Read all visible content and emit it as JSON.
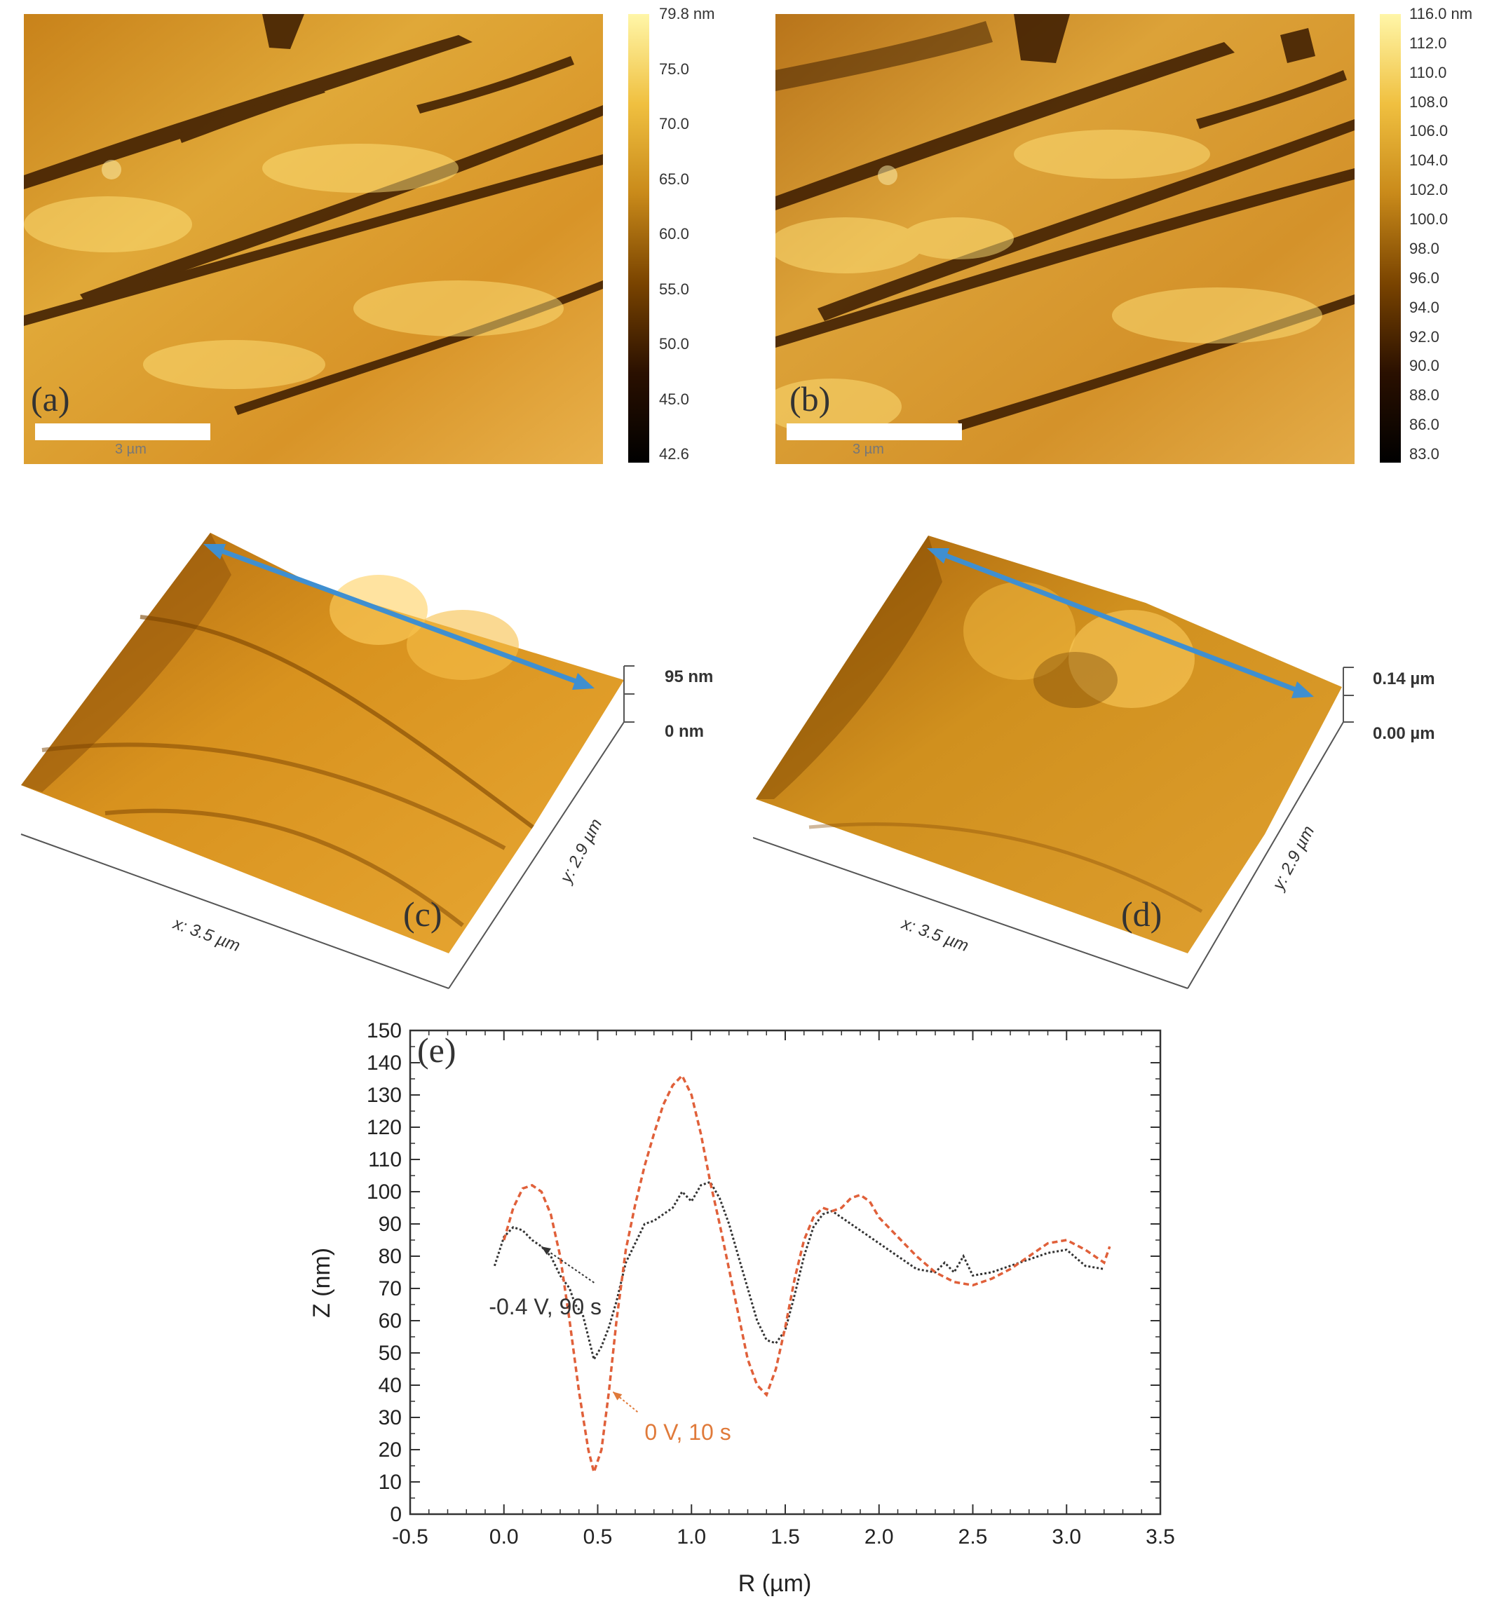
{
  "panels": {
    "a": {
      "tag": "(a)",
      "scalebar_label": "3 µm",
      "colorbar": {
        "ticks": [
          "79.8 nm",
          "75.0",
          "70.0",
          "65.0",
          "60.0",
          "55.0",
          "50.0",
          "45.0",
          "42.6"
        ],
        "min": 42.6,
        "max": 79.8
      }
    },
    "b": {
      "tag": "(b)",
      "scalebar_label": "3 µm",
      "colorbar": {
        "ticks": [
          "116.0 nm",
          "112.0",
          "110.0",
          "108.0",
          "106.0",
          "104.0",
          "102.0",
          "100.0",
          "98.0",
          "96.0",
          "94.0",
          "92.0",
          "90.0",
          "88.0",
          "86.0",
          "83.0"
        ],
        "min": 83.0,
        "max": 116.0
      }
    },
    "c": {
      "tag": "(c)",
      "z_max": "95 nm",
      "z_min": "0 nm",
      "x_axis": "x: 3.5 µm",
      "y_axis": "y: 2.9 µm"
    },
    "d": {
      "tag": "(d)",
      "z_max": "0.14 µm",
      "z_min": "0.00 µm",
      "x_axis": "x: 3.5 µm",
      "y_axis": "y: 2.9 µm"
    }
  },
  "colors": {
    "afm_dark": "#2a1400",
    "afm_mid": "#c98a1a",
    "afm_light": "#ffe27a",
    "arrow": "#3f8fd0",
    "series_black": "#333333",
    "series_orange": "#e0603a",
    "annotation_orange": "#e07a3a"
  },
  "chart_data": {
    "type": "line",
    "tag": "(e)",
    "xlabel": "R (µm)",
    "ylabel": "Z (nm)",
    "xlim": [
      -0.5,
      3.5
    ],
    "ylim": [
      0,
      150
    ],
    "xticks": [
      -0.5,
      0.0,
      0.5,
      1.0,
      1.5,
      2.0,
      2.5,
      3.0,
      3.5
    ],
    "xtick_labels": [
      "-0.5",
      "0.0",
      "0.5",
      "1.0",
      "1.5",
      "2.0",
      "2.5",
      "3.0",
      "3.5"
    ],
    "yticks": [
      0,
      10,
      20,
      30,
      40,
      50,
      60,
      70,
      80,
      90,
      100,
      110,
      120,
      130,
      140,
      150
    ],
    "ytick_labels": [
      "0",
      "10",
      "20",
      "30",
      "40",
      "50",
      "60",
      "70",
      "80",
      "90",
      "100",
      "110",
      "120",
      "130",
      "140",
      "150"
    ],
    "grid": false,
    "series": [
      {
        "name": "-0.4 V, 90 s",
        "style": "dotted",
        "x": [
          -0.05,
          0.0,
          0.05,
          0.1,
          0.15,
          0.2,
          0.25,
          0.3,
          0.35,
          0.38,
          0.42,
          0.45,
          0.48,
          0.52,
          0.56,
          0.6,
          0.65,
          0.7,
          0.75,
          0.8,
          0.85,
          0.9,
          0.95,
          1.0,
          1.05,
          1.1,
          1.15,
          1.2,
          1.25,
          1.3,
          1.35,
          1.4,
          1.45,
          1.5,
          1.55,
          1.6,
          1.65,
          1.7,
          1.75,
          1.8,
          1.9,
          2.0,
          2.1,
          2.2,
          2.3,
          2.35,
          2.4,
          2.45,
          2.5,
          2.6,
          2.7,
          2.8,
          2.9,
          3.0,
          3.1,
          3.2
        ],
        "values": [
          77,
          86,
          89,
          88,
          85,
          83,
          80,
          74,
          70,
          65,
          62,
          55,
          48,
          52,
          58,
          66,
          78,
          84,
          90,
          91,
          93,
          95,
          100,
          97,
          102,
          103,
          98,
          90,
          80,
          70,
          60,
          54,
          53,
          57,
          68,
          80,
          89,
          93,
          94,
          92,
          88,
          84,
          80,
          76,
          75,
          78,
          75,
          80,
          74,
          75,
          77,
          79,
          81,
          82,
          77,
          76
        ]
      },
      {
        "name": "0 V, 10 s",
        "style": "dashed",
        "x": [
          0.0,
          0.05,
          0.1,
          0.15,
          0.2,
          0.25,
          0.3,
          0.35,
          0.4,
          0.45,
          0.48,
          0.52,
          0.56,
          0.6,
          0.65,
          0.7,
          0.75,
          0.8,
          0.85,
          0.9,
          0.95,
          1.0,
          1.05,
          1.1,
          1.15,
          1.2,
          1.25,
          1.3,
          1.35,
          1.4,
          1.45,
          1.5,
          1.55,
          1.6,
          1.65,
          1.7,
          1.75,
          1.8,
          1.85,
          1.9,
          1.95,
          2.0,
          2.1,
          2.2,
          2.3,
          2.4,
          2.5,
          2.6,
          2.7,
          2.8,
          2.9,
          3.0,
          3.1,
          3.2,
          3.23
        ],
        "values": [
          85,
          95,
          101,
          102,
          100,
          93,
          80,
          60,
          38,
          20,
          13,
          20,
          38,
          60,
          82,
          96,
          108,
          118,
          127,
          133,
          136,
          130,
          118,
          103,
          90,
          76,
          62,
          48,
          40,
          37,
          45,
          58,
          73,
          85,
          92,
          95,
          94,
          95,
          98,
          99,
          97,
          92,
          86,
          80,
          75,
          72,
          71,
          73,
          76,
          80,
          84,
          85,
          82,
          78,
          83
        ]
      }
    ],
    "annotations": [
      {
        "text": "-0.4 V, 90 s",
        "x": -0.08,
        "y": 62,
        "arrow_to": [
          0.2,
          83
        ],
        "color": "#333333"
      },
      {
        "text": "0 V, 10 s",
        "x": 0.75,
        "y": 23,
        "arrow_to": [
          0.58,
          38
        ],
        "color": "#e07a3a"
      }
    ]
  }
}
